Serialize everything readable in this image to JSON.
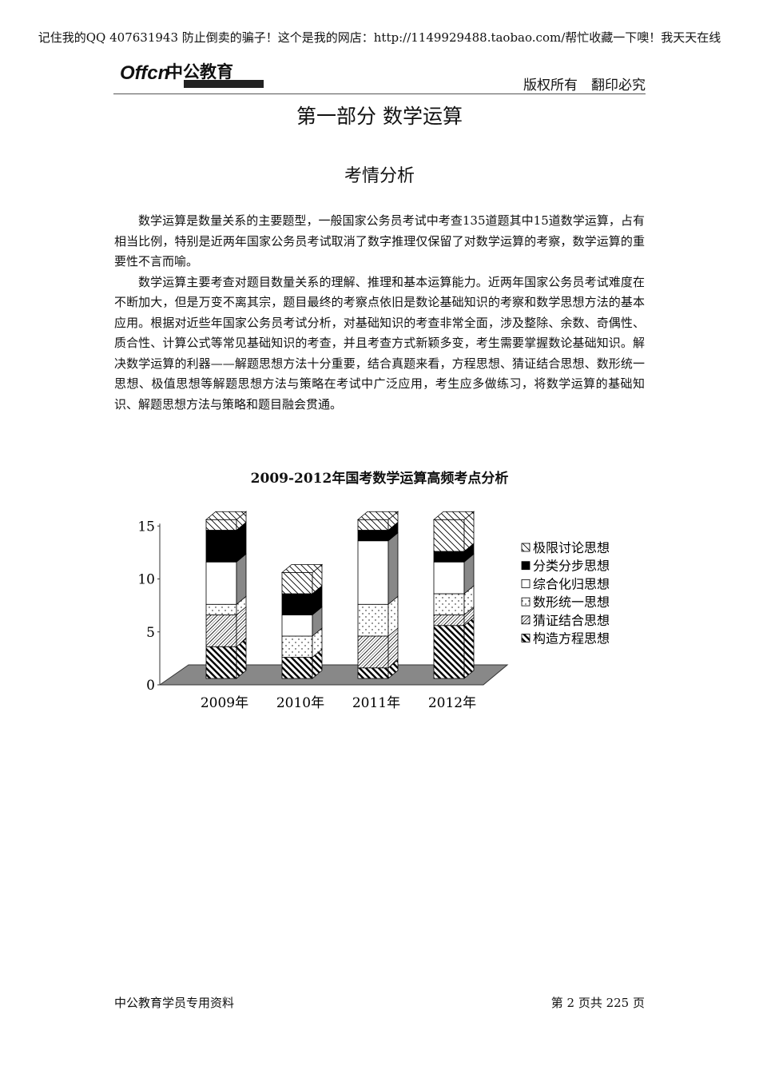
{
  "header": {
    "note": "记住我的QQ 407631943 防止倒卖的骗子！这个是我的网店：http://1149929488.taobao.com/帮忙收藏一下噢！我天天在线",
    "logo_text": "中公教育",
    "rights": "版权所有　翻印必究"
  },
  "title": "第一部分  数学运算",
  "subtitle": "考情分析",
  "paragraphs": [
    "数学运算是数量关系的主要题型，一般国家公务员考试中考查135道题其中15道数学运算，占有相当比例，特别是近两年国家公务员考试取消了数字推理仅保留了对数学运算的考察，数学运算的重要性不言而喻。",
    "数学运算主要考查对题目数量关系的理解、推理和基本运算能力。近两年国家公务员考试难度在不断加大，但是万变不离其宗，题目最终的考察点依旧是数论基础知识的考察和数学思想方法的基本应用。根据对近些年国家公务员考试分析，对基础知识的考查非常全面，涉及整除、余数、奇偶性、质合性、计算公式等常见基础知识的考查，并且考查方式新颖多变，考生需要掌握数论基础知识。解决数学运算的利器——解题思想方法十分重要，结合真题来看，方程思想、猜证结合思想、数形统一思想、极值思想等解题思想方法与策略在考试中广泛应用，考生应多做练习，将数学运算的基础知识、解题思想方法与策略和题目融会贯通。"
  ],
  "chart_data": {
    "type": "bar",
    "stacked": true,
    "style": "3d",
    "title": "2009-2012年国考数学运算高频考点分析",
    "categories": [
      "2009年",
      "2010年",
      "2011年",
      "2012年"
    ],
    "ylim": [
      0,
      15
    ],
    "yticks": [
      "0",
      "5",
      "10",
      "15"
    ],
    "legend_position": "right",
    "series": [
      {
        "name": "构造方程思想",
        "values": [
          3,
          2,
          1,
          5
        ],
        "pattern": "thick-diagonal"
      },
      {
        "name": "猜证结合思想",
        "values": [
          3,
          0,
          3,
          1
        ],
        "pattern": "fine-diagonal"
      },
      {
        "name": "数形统一思想",
        "values": [
          1,
          2,
          3,
          2
        ],
        "pattern": "dots"
      },
      {
        "name": "综合化归思想",
        "values": [
          4,
          2,
          6,
          3
        ],
        "pattern": "white"
      },
      {
        "name": "分类分步思想",
        "values": [
          3,
          2,
          1,
          1
        ],
        "pattern": "black"
      },
      {
        "name": "极限讨论思想",
        "values": [
          1,
          2,
          1,
          3
        ],
        "pattern": "back-diagonal"
      }
    ]
  },
  "footer": {
    "left": "中公教育学员专用资料",
    "right": "第 2 页共 225 页"
  }
}
